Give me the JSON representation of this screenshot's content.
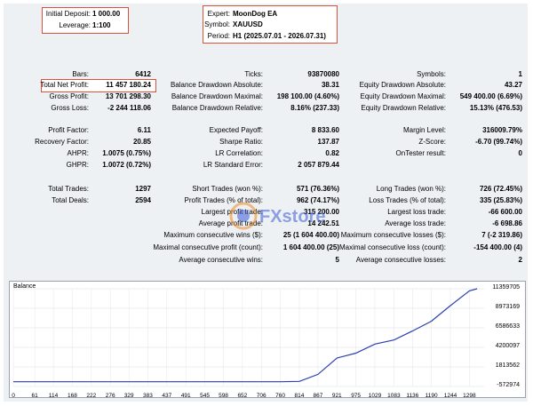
{
  "deposit": {
    "initial_deposit_label": "Initial Deposit:",
    "initial_deposit_value": "1 000.00",
    "leverage_label": "Leverage:",
    "leverage_value": "1:100"
  },
  "expert_info": {
    "expert_label": "Expert:",
    "expert_value": "MoonDog EA",
    "symbol_label": "Symbol:",
    "symbol_value": "XAUUSD",
    "period_label": "Period:",
    "period_value": "H1 (2025.07.01 - 2026.07.31)"
  },
  "col1": [
    {
      "label": "Bars:",
      "value": "6412"
    },
    {
      "label": "Total Net Profit:",
      "value": "11 457 180.24"
    },
    {
      "label": "Gross Profit:",
      "value": "13 701 298.30"
    },
    {
      "label": "Gross Loss:",
      "value": "-2 244 118.06"
    },
    {
      "label": "Profit Factor:",
      "value": "6.11"
    },
    {
      "label": "Recovery Factor:",
      "value": "20.85"
    },
    {
      "label": "AHPR:",
      "value": "1.0075 (0.75%)"
    },
    {
      "label": "GHPR:",
      "value": "1.0072 (0.72%)"
    },
    {
      "label": "Total Trades:",
      "value": "1297"
    },
    {
      "label": "Total Deals:",
      "value": "2594"
    }
  ],
  "col2": [
    {
      "label": "Ticks:",
      "value": "93870080"
    },
    {
      "label": "Balance Drawdown Absolute:",
      "value": "38.31"
    },
    {
      "label": "Balance Drawdown Maximal:",
      "value": "198 100.00 (4.60%)"
    },
    {
      "label": "Balance Drawdown Relative:",
      "value": "8.16% (237.33)"
    },
    {
      "label": "Expected Payoff:",
      "value": "8 833.60"
    },
    {
      "label": "Sharpe Ratio:",
      "value": "137.87"
    },
    {
      "label": "LR Correlation:",
      "value": "0.82"
    },
    {
      "label": "LR Standard Error:",
      "value": "2 057 879.44"
    },
    {
      "label": "Short Trades (won %):",
      "value": "571 (76.36%)"
    },
    {
      "label": "Profit Trades (% of total):",
      "value": "962 (74.17%)"
    },
    {
      "label": "Largest profit trade:",
      "value": "315 200.00"
    },
    {
      "label": "Average profit trade:",
      "value": "14 242.51"
    },
    {
      "label": "Maximum consecutive wins ($):",
      "value": "25 (1 604 400.00)"
    },
    {
      "label": "Maximal consecutive profit (count):",
      "value": "1 604 400.00 (25)"
    },
    {
      "label": "Average consecutive wins:",
      "value": "5"
    }
  ],
  "col3": [
    {
      "label": "Symbols:",
      "value": "1"
    },
    {
      "label": "Equity Drawdown Absolute:",
      "value": "43.27"
    },
    {
      "label": "Equity Drawdown Maximal:",
      "value": "549 400.00 (6.69%)"
    },
    {
      "label": "Equity Drawdown Relative:",
      "value": "15.13% (476.53)"
    },
    {
      "label": "Margin Level:",
      "value": "316009.79%"
    },
    {
      "label": "Z-Score:",
      "value": "-6.70 (99.74%)"
    },
    {
      "label": "OnTester result:",
      "value": "0"
    },
    {
      "label": "Long Trades (won %):",
      "value": "726 (72.45%)"
    },
    {
      "label": "Loss Trades (% of total):",
      "value": "335 (25.83%)"
    },
    {
      "label": "Largest loss trade:",
      "value": "-66 600.00"
    },
    {
      "label": "Average loss trade:",
      "value": "-6 698.86"
    },
    {
      "label": "Maximum consecutive losses ($):",
      "value": "7 (-2 319.86)"
    },
    {
      "label": "Maximal consecutive loss (count):",
      "value": "-154 400.00 (4)"
    },
    {
      "label": "Average consecutive losses:",
      "value": "2"
    }
  ],
  "watermark": {
    "text": "FXstore",
    "brand_color": "#3b5bd6",
    "accent_color": "#f08a24"
  },
  "chart_data": {
    "type": "line",
    "title": "Balance",
    "series": [
      {
        "name": "Balance",
        "color": "#2b3fb0"
      }
    ],
    "x": [
      0,
      61,
      114,
      168,
      222,
      276,
      329,
      383,
      437,
      491,
      545,
      598,
      652,
      706,
      760,
      814,
      867,
      921,
      975,
      1029,
      1083,
      1136,
      1190,
      1244,
      1298,
      1320
    ],
    "y": [
      0,
      0,
      0,
      0,
      0,
      0,
      0,
      0,
      0,
      0,
      0,
      0,
      0,
      0,
      0,
      40000,
      900000,
      2900000,
      3500000,
      4600000,
      5100000,
      6200000,
      7400000,
      9300000,
      11100000,
      11360000
    ],
    "x_ticks": [
      "0",
      "61",
      "114",
      "168",
      "222",
      "276",
      "329",
      "383",
      "437",
      "491",
      "545",
      "598",
      "652",
      "706",
      "760",
      "814",
      "867",
      "921",
      "975",
      "1029",
      "1083",
      "1136",
      "1190",
      "1244",
      "1298"
    ],
    "y_ticks": [
      "11359705",
      "8973169",
      "6586633",
      "4200097",
      "1813562",
      "-572974"
    ],
    "ylim": [
      -572974,
      11359705
    ],
    "xlim": [
      0,
      1340
    ],
    "grid": true,
    "legend": "none"
  }
}
